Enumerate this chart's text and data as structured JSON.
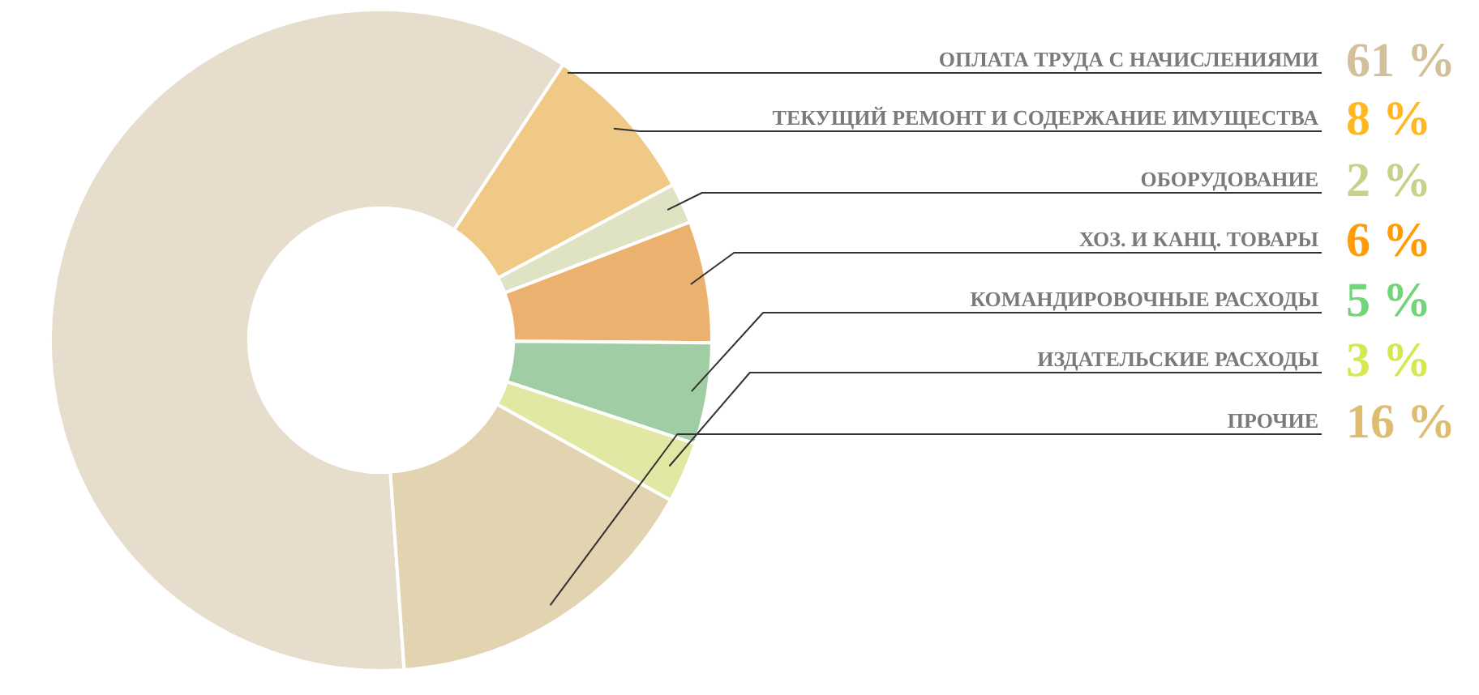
{
  "chart_data": {
    "type": "donut",
    "categories": [
      "ОПЛАТА ТРУДА С НАЧИСЛЕНИЯМИ",
      "ТЕКУЩИЙ РЕМОНТ И СОДЕРЖАНИЕ ИМУЩЕСТВА",
      "ОБОРУДОВАНИЕ",
      "ХОЗ. И КАНЦ. ТОВАРЫ",
      "КОМАНДИРОВОЧНЫЕ РАСХОДЫ",
      "ИЗДАТЕЛЬСКИЕ РАСХОДЫ",
      "ПРОЧИЕ"
    ],
    "values": [
      61,
      8,
      2,
      6,
      5,
      3,
      16
    ],
    "colors": [
      "#e6ddcc",
      "#efc985",
      "#dfe3c3",
      "#ebb26f",
      "#a1cda5",
      "#e0e8a3",
      "#e3d4b1"
    ],
    "value_labels": [
      "61 %",
      "8 %",
      "2 %",
      "6 %",
      "5 %",
      "3 %",
      "16 %"
    ],
    "legend": false
  }
}
